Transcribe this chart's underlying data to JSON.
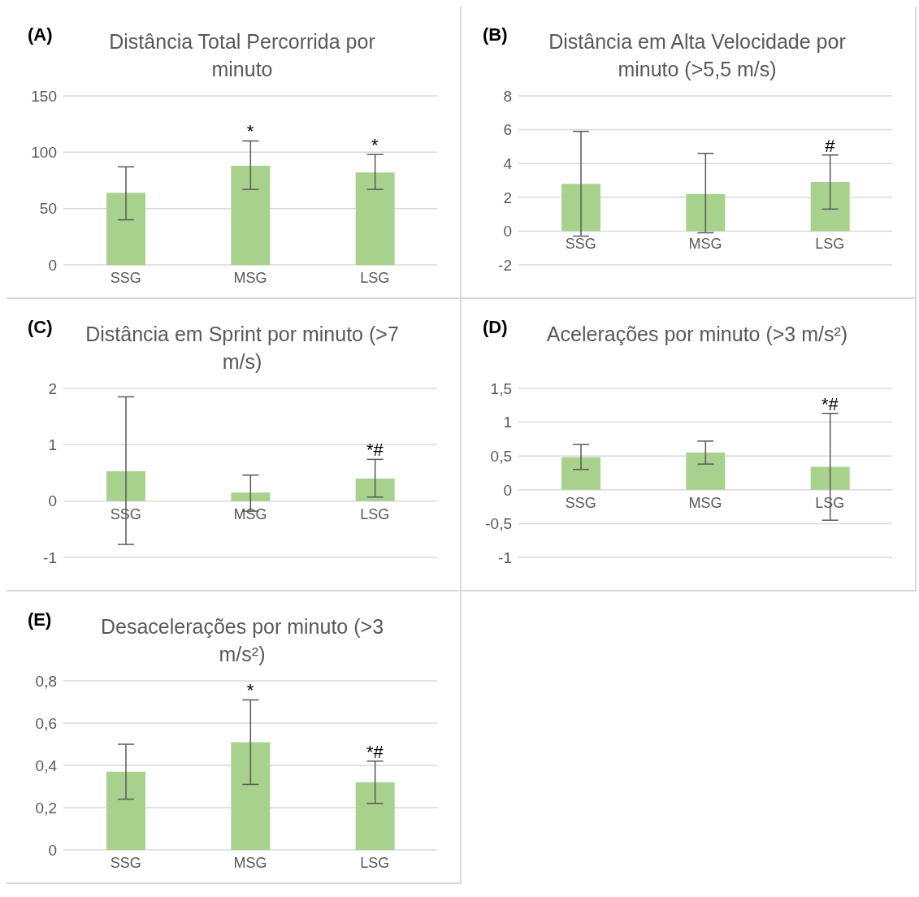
{
  "chart_data": [
    {
      "type": "bar",
      "title": "Distância Total Percorrida por minuto",
      "categories": [
        "SSG",
        "MSG",
        "LSG"
      ],
      "values": [
        64,
        88,
        82
      ],
      "errors": [
        [
          40,
          87
        ],
        [
          67,
          110
        ],
        [
          67,
          98
        ]
      ],
      "color": "#a9d18e",
      "ylim": [
        0,
        150
      ],
      "yticks": [
        0,
        50,
        100,
        150
      ],
      "grid": "y",
      "annotations": [
        "(A)",
        {
          "text": "*",
          "x": "MSG",
          "y": 110
        },
        {
          "text": "*",
          "x": "LSG",
          "y": 98
        }
      ]
    },
    {
      "type": "bar",
      "title": "Distância em Alta Velocidade por minuto (>5,5 m/s)",
      "categories": [
        "SSG",
        "MSG",
        "LSG"
      ],
      "values": [
        2.8,
        2.2,
        2.9
      ],
      "errors": [
        [
          -0.3,
          5.9
        ],
        [
          -0.1,
          4.6
        ],
        [
          1.3,
          4.5
        ]
      ],
      "color": "#a9d18e",
      "ylim": [
        -2,
        8
      ],
      "yticks": [
        -2,
        0,
        2,
        4,
        6,
        8
      ],
      "grid": "y",
      "annotations": [
        "(B)",
        {
          "text": "#",
          "x": "LSG",
          "y": 4.5
        }
      ]
    },
    {
      "type": "bar",
      "title": "Distância em Sprint por minuto (>7 m/s)",
      "categories": [
        "SSG",
        "MSG",
        "LSG"
      ],
      "values": [
        0.53,
        0.15,
        0.4
      ],
      "errors": [
        [
          -0.77,
          1.85
        ],
        [
          -0.18,
          0.46
        ],
        [
          0.07,
          0.74
        ]
      ],
      "color": "#a9d18e",
      "ylim": [
        -1,
        2
      ],
      "yticks": [
        -1,
        0,
        1,
        2
      ],
      "grid": "y",
      "annotations": [
        "(C)",
        {
          "text": "*#",
          "x": "LSG",
          "y": 0.74
        }
      ]
    },
    {
      "type": "bar",
      "title": "Acelerações por minuto (>3 m/s²)",
      "categories": [
        "SSG",
        "MSG",
        "LSG"
      ],
      "values": [
        0.48,
        0.55,
        0.34
      ],
      "errors": [
        [
          0.3,
          0.67
        ],
        [
          0.38,
          0.72
        ],
        [
          -0.45,
          1.13
        ]
      ],
      "color": "#a9d18e",
      "ylim": [
        -1,
        1.5
      ],
      "yticks": [
        -1,
        {
          "value": -0.5,
          "label": "-0,5"
        },
        0,
        {
          "value": 0.5,
          "label": "0,5"
        },
        1,
        {
          "value": 1.5,
          "label": "1,5"
        }
      ],
      "grid": "y",
      "annotations": [
        "(D)",
        {
          "text": "*#",
          "x": "LSG",
          "y": 1.13
        }
      ]
    },
    {
      "type": "bar",
      "title": "Desacelerações por minuto (>3 m/s²)",
      "categories": [
        "SSG",
        "MSG",
        "LSG"
      ],
      "values": [
        0.37,
        0.51,
        0.32
      ],
      "errors": [
        [
          0.24,
          0.5
        ],
        [
          0.31,
          0.71
        ],
        [
          0.22,
          0.42
        ]
      ],
      "color": "#a9d18e",
      "ylim": [
        0,
        0.8
      ],
      "yticks": [
        0,
        {
          "value": 0.2,
          "label": "0,2"
        },
        {
          "value": 0.4,
          "label": "0,4"
        },
        {
          "value": 0.6,
          "label": "0,6"
        },
        {
          "value": 0.8,
          "label": "0,8"
        }
      ],
      "grid": "y",
      "annotations": [
        "(E)",
        {
          "text": "*",
          "x": "MSG",
          "y": 0.71
        },
        {
          "text": "*#",
          "x": "LSG",
          "y": 0.42
        }
      ]
    }
  ]
}
